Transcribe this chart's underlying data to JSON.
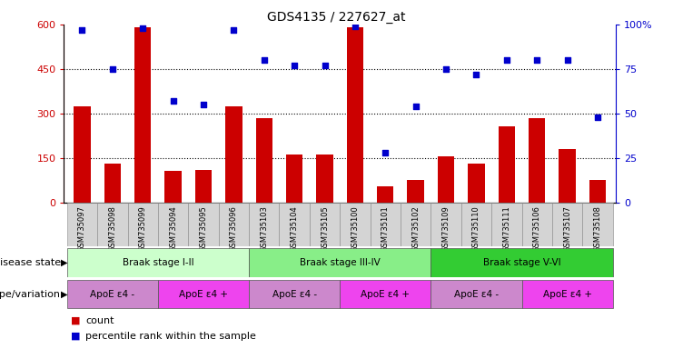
{
  "title": "GDS4135 / 227627_at",
  "samples": [
    "GSM735097",
    "GSM735098",
    "GSM735099",
    "GSM735094",
    "GSM735095",
    "GSM735096",
    "GSM735103",
    "GSM735104",
    "GSM735105",
    "GSM735100",
    "GSM735101",
    "GSM735102",
    "GSM735109",
    "GSM735110",
    "GSM735111",
    "GSM735106",
    "GSM735107",
    "GSM735108"
  ],
  "counts": [
    325,
    130,
    590,
    105,
    110,
    325,
    285,
    160,
    160,
    590,
    55,
    75,
    155,
    130,
    255,
    285,
    180,
    75
  ],
  "percentiles": [
    97,
    75,
    98,
    57,
    55,
    97,
    80,
    77,
    77,
    99,
    28,
    54,
    75,
    72,
    80,
    80,
    80,
    48
  ],
  "bar_color": "#cc0000",
  "dot_color": "#0000cc",
  "ylim_left": [
    0,
    600
  ],
  "ylim_right": [
    0,
    100
  ],
  "yticks_left": [
    0,
    150,
    300,
    450,
    600
  ],
  "ytick_labels_right": [
    "0",
    "25",
    "50",
    "75",
    "100%"
  ],
  "ytick_vals_right": [
    0,
    25,
    50,
    75,
    100
  ],
  "disease_stages": [
    {
      "label": "Braak stage I-II",
      "start": 0,
      "end": 6,
      "color": "#ccffcc"
    },
    {
      "label": "Braak stage III-IV",
      "start": 6,
      "end": 12,
      "color": "#88ee88"
    },
    {
      "label": "Braak stage V-VI",
      "start": 12,
      "end": 18,
      "color": "#33cc33"
    }
  ],
  "genotypes": [
    {
      "label": "ApoE ε4 -",
      "start": 0,
      "end": 3,
      "color": "#cc88cc"
    },
    {
      "label": "ApoE ε4 +",
      "start": 3,
      "end": 6,
      "color": "#ee44ee"
    },
    {
      "label": "ApoE ε4 -",
      "start": 6,
      "end": 9,
      "color": "#cc88cc"
    },
    {
      "label": "ApoE ε4 +",
      "start": 9,
      "end": 12,
      "color": "#ee44ee"
    },
    {
      "label": "ApoE ε4 -",
      "start": 12,
      "end": 15,
      "color": "#cc88cc"
    },
    {
      "label": "ApoE ε4 +",
      "start": 15,
      "end": 18,
      "color": "#ee44ee"
    }
  ],
  "disease_state_label": "disease state",
  "genotype_label": "genotype/variation",
  "legend_count": "count",
  "legend_percentile": "percentile rank within the sample",
  "background_color": "#ffffff",
  "xlim": [
    -0.6,
    17.6
  ]
}
